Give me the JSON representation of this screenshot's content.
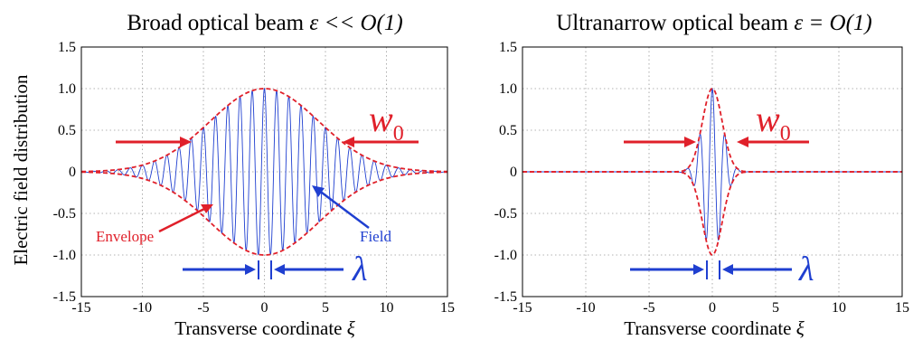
{
  "figure": {
    "ylabel": "Electric field distribution"
  },
  "chart_data": [
    {
      "type": "line",
      "title_main": "Broad optical beam ",
      "title_math": "ε << O(1)",
      "xlabel_main": "Transverse coordinate ",
      "xlabel_math": "ξ",
      "xlim": [
        -15,
        15
      ],
      "ylim": [
        -1.5,
        1.5
      ],
      "xticks": [
        "-15",
        "-10",
        "-5",
        "0",
        "5",
        "10",
        "15"
      ],
      "xtick_values": [
        -15,
        -10,
        -5,
        0,
        5,
        10,
        15
      ],
      "yticks": [
        "-1.5",
        "-1.0",
        "-0.5",
        "0",
        "0.5",
        "1.0",
        "1.5"
      ],
      "ytick_values": [
        -1.5,
        -1.0,
        -0.5,
        0,
        0.5,
        1.0,
        1.5
      ],
      "grid": true,
      "legend": "none",
      "envelope_waist_w0": 6.3,
      "carrier_period_lambda": 1.0,
      "series": [
        {
          "role": "field",
          "color": "#1f3fd0",
          "values_description_free": true,
          "peak": 1.0
        },
        {
          "role": "envelope",
          "color": "#e0202a",
          "style": "dashed",
          "peak": 1.0
        }
      ],
      "annotations": {
        "envelope_label": "Envelope",
        "field_label": "Field",
        "w0_label": "w",
        "w0_sub": "0",
        "lambda_label": "λ"
      }
    },
    {
      "type": "line",
      "title_main": "Ultranarrow optical beam ",
      "title_math": "ε = O(1)",
      "xlabel_main": "Transverse coordinate ",
      "xlabel_math": "ξ",
      "xlim": [
        -15,
        15
      ],
      "ylim": [
        -1.5,
        1.5
      ],
      "xticks": [
        "-15",
        "-10",
        "-5",
        "0",
        "5",
        "10",
        "15"
      ],
      "xtick_values": [
        -15,
        -10,
        -5,
        0,
        5,
        10,
        15
      ],
      "yticks": [
        "-1.5",
        "-1.0",
        "-0.5",
        "0",
        "0.5",
        "1.0",
        "1.5"
      ],
      "ytick_values": [
        -1.5,
        -1.0,
        -0.5,
        0,
        0.5,
        1.0,
        1.5
      ],
      "grid": true,
      "legend": "none",
      "envelope_waist_w0": 1.1,
      "carrier_period_lambda": 1.0,
      "series": [
        {
          "role": "field",
          "color": "#1f3fd0",
          "peak": 1.0
        },
        {
          "role": "envelope",
          "color": "#e0202a",
          "style": "dashed",
          "peak": 1.0
        }
      ],
      "annotations": {
        "w0_label": "w",
        "w0_sub": "0",
        "lambda_label": "λ"
      }
    }
  ],
  "colors": {
    "field": "#1f3fd0",
    "envelope": "#e0202a",
    "grid": "#9a9a9a"
  }
}
